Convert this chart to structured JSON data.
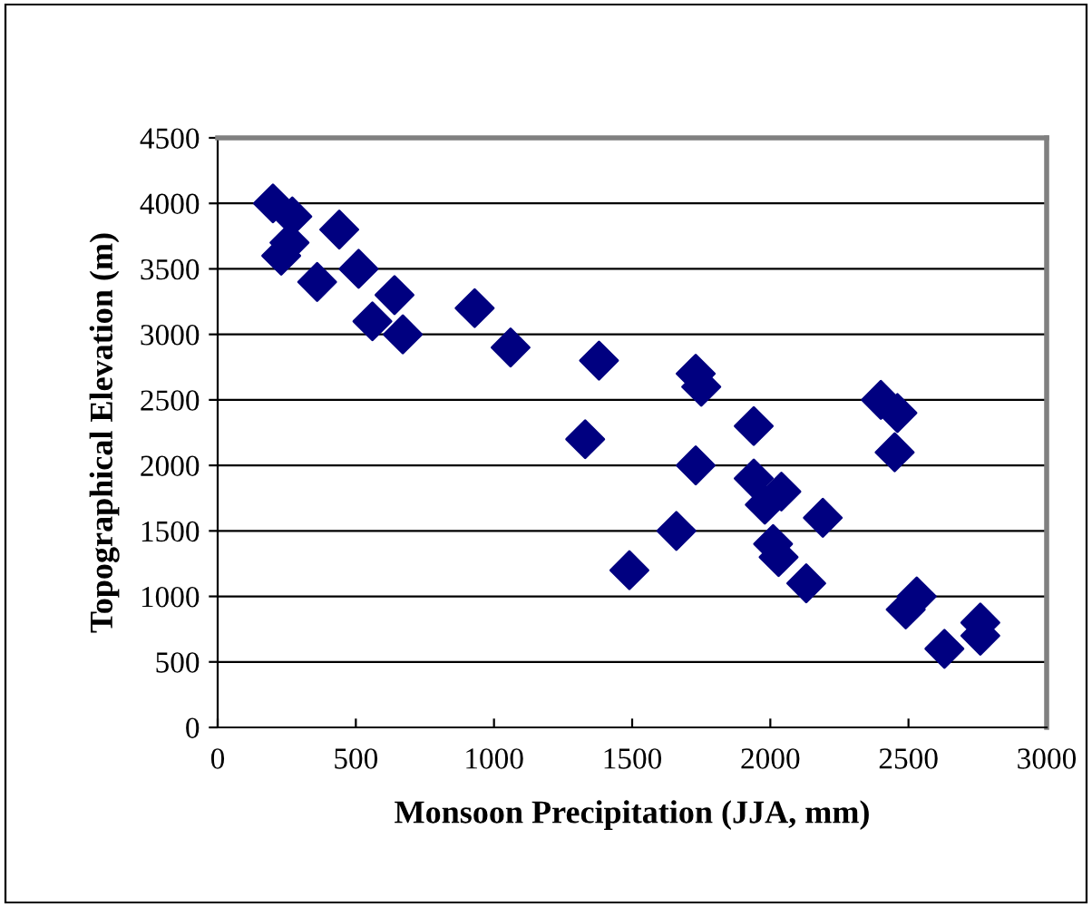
{
  "chart_data": {
    "type": "scatter",
    "xlabel": "Monsoon Precipitation (JJA, mm)",
    "ylabel": "Topographical Elevation (m)",
    "xlim": [
      0,
      3000
    ],
    "xticks": [
      0,
      500,
      1000,
      1500,
      2000,
      2500,
      3000
    ],
    "ylim": [
      0,
      4500
    ],
    "yticks": [
      0,
      500,
      1000,
      1500,
      2000,
      2500,
      3000,
      3500,
      4000,
      4500
    ],
    "grid": "y",
    "legend": false,
    "marker": "diamond",
    "series": [
      {
        "color": "#000080",
        "x": [
          200,
          270,
          260,
          230,
          440,
          360,
          510,
          560,
          640,
          670,
          930,
          1060,
          1380,
          1330,
          1490,
          1660,
          1730,
          1750,
          1730,
          1940,
          1940,
          1980,
          2040,
          2010,
          2030,
          2130,
          2190,
          2400,
          2460,
          2450,
          2490,
          2530,
          2630,
          2760,
          2760
        ],
        "values": [
          4000,
          3900,
          3700,
          3600,
          3800,
          3400,
          3500,
          3100,
          3300,
          3000,
          3200,
          2900,
          2800,
          2200,
          1200,
          1500,
          2700,
          2600,
          2000,
          2300,
          1900,
          1700,
          1800,
          1400,
          1300,
          1100,
          1600,
          2500,
          2400,
          2100,
          900,
          1000,
          600,
          800,
          700
        ]
      }
    ]
  }
}
